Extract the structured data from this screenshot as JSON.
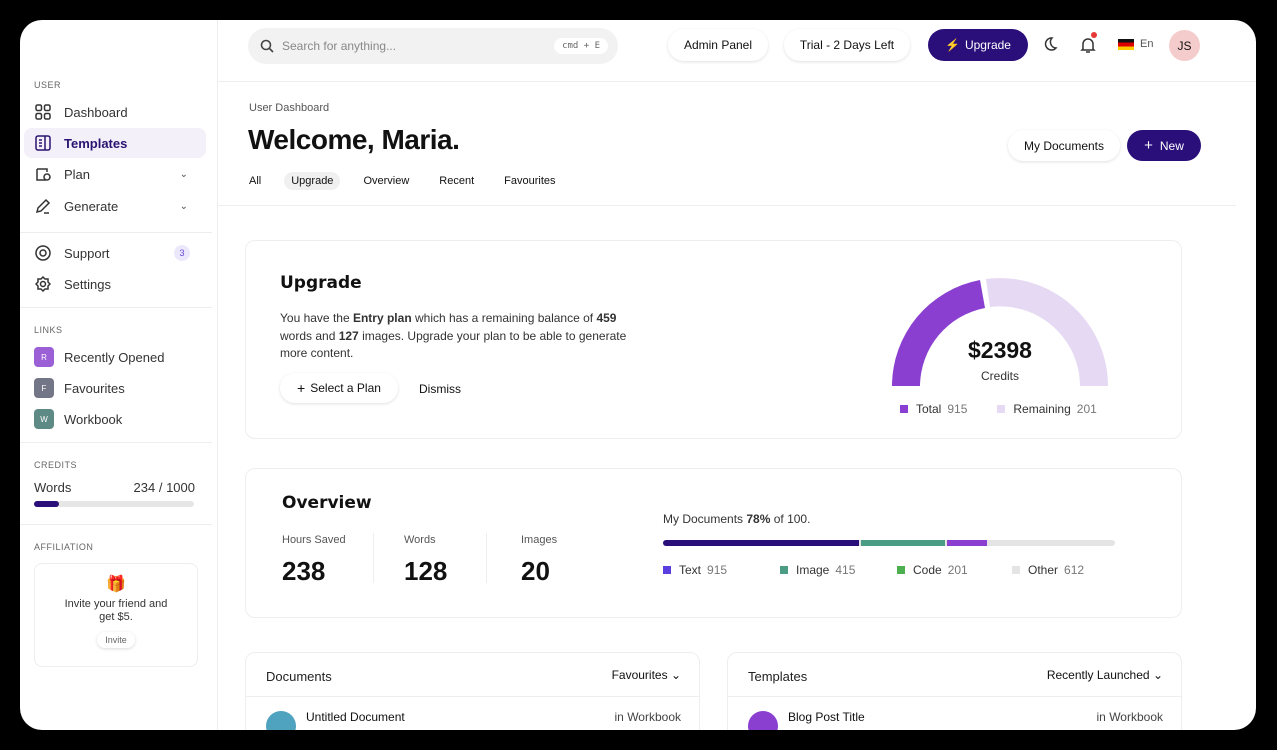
{
  "sidebar": {
    "user_section": "USER",
    "items": [
      {
        "label": "Dashboard",
        "icon": "grid-icon"
      },
      {
        "label": "Templates",
        "icon": "template-icon"
      },
      {
        "label": "Plan",
        "icon": "wallet-icon"
      },
      {
        "label": "Generate",
        "icon": "pencil-icon"
      },
      {
        "label": "Support",
        "icon": "lifebuoy-icon",
        "badge": "3"
      },
      {
        "label": "Settings",
        "icon": "gear-icon"
      }
    ],
    "links_section": "LINKS",
    "links": [
      {
        "letter": "R",
        "label": "Recently Opened",
        "color": "#9b5fd6"
      },
      {
        "letter": "F",
        "label": "Favourites",
        "color": "#737687"
      },
      {
        "letter": "W",
        "label": "Workbook",
        "color": "#5e8a85"
      }
    ],
    "credits_section": "CREDITS",
    "credits_label": "Words",
    "credits_value": "234 / 1000",
    "credits_fraction": 0.234,
    "affiliation_section": "AFFILIATION",
    "affiliation_text": "Invite your friend and get $5.",
    "invite_label": "Invite"
  },
  "topbar": {
    "search_placeholder": "Search for anything...",
    "shortcut": "cmd + E",
    "admin": "Admin Panel",
    "trial": "Trial - 2 Days Left",
    "upgrade": "Upgrade",
    "lang": "En",
    "avatar": "JS"
  },
  "header": {
    "breadcrumb": "User Dashboard",
    "title": "Welcome, Maria.",
    "tabs": [
      "All",
      "Upgrade",
      "Overview",
      "Recent",
      "Favourites"
    ],
    "active_tab": "Upgrade",
    "my_documents": "My Documents",
    "new": "New"
  },
  "upgrade": {
    "title": "Upgrade",
    "text_1": "You have the ",
    "plan": "Entry plan",
    "text_2": " which has a remaining balance of ",
    "words": "459",
    "text_3": " words and ",
    "images": "127",
    "text_4": " images. Upgrade your plan to be able to generate more content.",
    "select": "Select a Plan",
    "dismiss": "Dismiss",
    "gauge": {
      "amount": "$2398",
      "label": "Credits",
      "total_label": "Total",
      "total": "915",
      "remaining_label": "Remaining",
      "remaining": "201",
      "colors": {
        "total": "#8a3fd1",
        "remaining": "#e6d9f3"
      }
    }
  },
  "overview": {
    "title": "Overview",
    "stats": [
      {
        "label": "Hours Saved",
        "value": "238"
      },
      {
        "label": "Words",
        "value": "128"
      },
      {
        "label": "Images",
        "value": "20"
      }
    ],
    "docs_prefix": "My Documents ",
    "docs_pct": "78%",
    "docs_suffix": " of 100.",
    "legend": [
      {
        "label": "Text",
        "value": "915",
        "color": "#5b3ee0"
      },
      {
        "label": "Image",
        "value": "415",
        "color": "#4a9c84"
      },
      {
        "label": "Code",
        "value": "201",
        "color": "#4caf50"
      },
      {
        "label": "Other",
        "value": "612",
        "color": "#e4e4e4"
      }
    ]
  },
  "documents": {
    "title": "Documents",
    "filter": "Favourites",
    "row": {
      "name": "Untitled Document",
      "location": "in Workbook"
    }
  },
  "templates": {
    "title": "Templates",
    "filter": "Recently Launched",
    "row": {
      "name": "Blog Post Title",
      "location": "in Workbook"
    }
  }
}
